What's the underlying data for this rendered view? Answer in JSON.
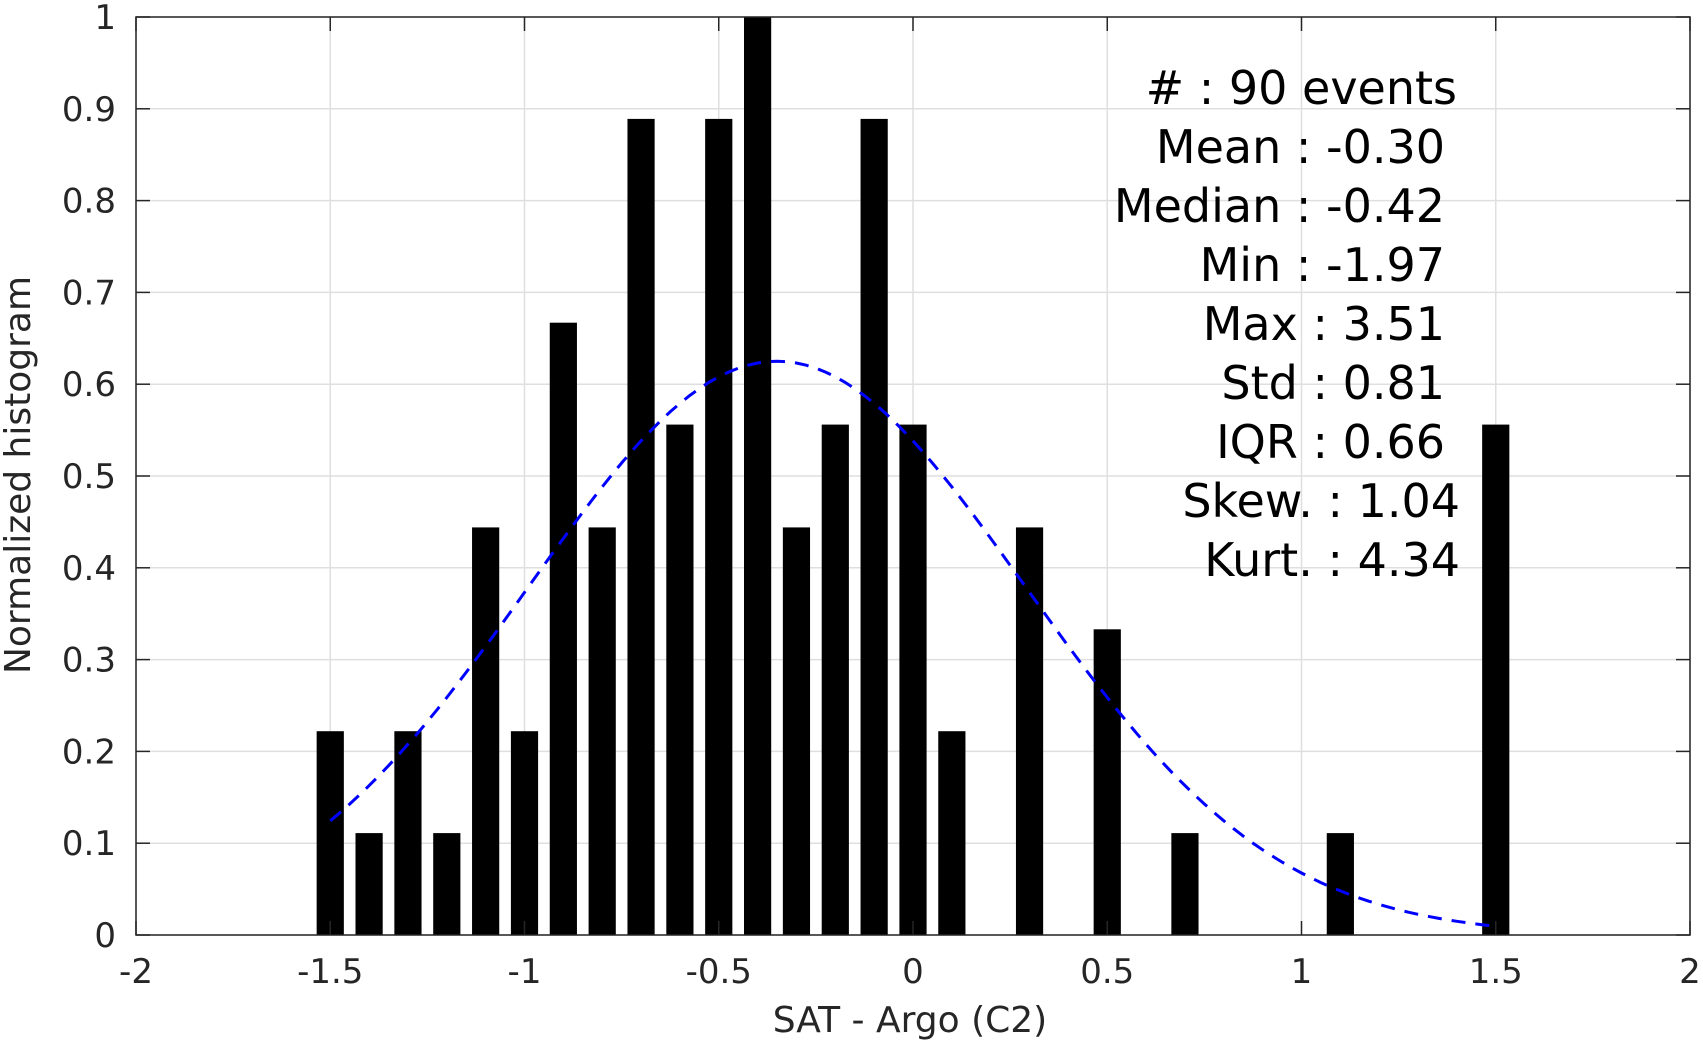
{
  "chart_data": {
    "type": "bar",
    "title": "",
    "xlabel": "SAT - Argo (C2)",
    "ylabel": "Normalized histogram",
    "xlim": [
      -2,
      2
    ],
    "ylim": [
      0,
      1
    ],
    "xticks": [
      "-2",
      "-1.5",
      "-1",
      "-0.5",
      "0",
      "0.5",
      "1",
      "1.5",
      "2"
    ],
    "yticks": [
      "0",
      "0.1",
      "0.2",
      "0.3",
      "0.4",
      "0.5",
      "0.6",
      "0.7",
      "0.8",
      "0.9",
      "1"
    ],
    "grid": true,
    "bar_color": "#000000",
    "bars": [
      {
        "x": -1.5,
        "value": 0.222
      },
      {
        "x": -1.4,
        "value": 0.111
      },
      {
        "x": -1.3,
        "value": 0.222
      },
      {
        "x": -1.2,
        "value": 0.111
      },
      {
        "x": -1.1,
        "value": 0.444
      },
      {
        "x": -1.0,
        "value": 0.222
      },
      {
        "x": -0.9,
        "value": 0.667
      },
      {
        "x": -0.8,
        "value": 0.444
      },
      {
        "x": -0.7,
        "value": 0.889
      },
      {
        "x": -0.6,
        "value": 0.556
      },
      {
        "x": -0.5,
        "value": 0.889
      },
      {
        "x": -0.4,
        "value": 1.0
      },
      {
        "x": -0.3,
        "value": 0.444
      },
      {
        "x": -0.2,
        "value": 0.556
      },
      {
        "x": -0.1,
        "value": 0.889
      },
      {
        "x": 0.0,
        "value": 0.556
      },
      {
        "x": 0.1,
        "value": 0.222
      },
      {
        "x": 0.3,
        "value": 0.444
      },
      {
        "x": 0.5,
        "value": 0.333
      },
      {
        "x": 0.7,
        "value": 0.111
      },
      {
        "x": 1.1,
        "value": 0.111
      },
      {
        "x": 1.5,
        "value": 0.556
      }
    ],
    "fit_curve": {
      "style": "dashed",
      "color": "#0000ff",
      "x_range": [
        -1.5,
        1.5
      ],
      "peak_x": -0.35,
      "peak_y": 0.625
    },
    "stats": [
      {
        "label": "#  : 90 events"
      },
      {
        "label": "Mean : -0.30"
      },
      {
        "label": "Median : -0.42"
      },
      {
        "label": "Min : -1.97"
      },
      {
        "label": "Max : 3.51"
      },
      {
        "label": "Std : 0.81"
      },
      {
        "label": "IQR : 0.66"
      },
      {
        "label": "Skew. : 1.04"
      },
      {
        "label": "Kurt. : 4.34"
      }
    ]
  }
}
